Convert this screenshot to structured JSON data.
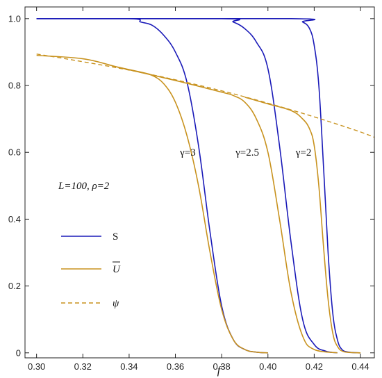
{
  "chart_data": {
    "type": "line",
    "xlabel": "f",
    "xlim": [
      0.295,
      0.446
    ],
    "ylim": [
      -0.015,
      1.035
    ],
    "x_ticks": [
      "0.30",
      "0.32",
      "0.34",
      "0.36",
      "0.38",
      "0.40",
      "0.42",
      "0.44"
    ],
    "x_tick_values": [
      0.3,
      0.32,
      0.34,
      0.36,
      0.38,
      0.4,
      0.42,
      0.44
    ],
    "y_ticks": [
      "0",
      "0.2",
      "0.4",
      "0.6",
      "0.8",
      "1.0"
    ],
    "y_tick_values": [
      0,
      0.2,
      0.4,
      0.6,
      0.8,
      1.0
    ],
    "grid": false,
    "colors": {
      "S": "#1a1ab8",
      "U": "#c8921e",
      "psi": "#c8921e",
      "axis": "#222222"
    },
    "annotation": "L=100, ρ=2",
    "legend": {
      "placement": "left",
      "items": [
        {
          "label": "S",
          "style": "solid",
          "color": "#1a1ab8"
        },
        {
          "label": "U",
          "overline": true,
          "style": "solid",
          "color": "#c8921e"
        },
        {
          "label": "ψ",
          "style": "dashed",
          "color": "#c8921e"
        }
      ]
    },
    "gamma_labels": [
      {
        "text": "γ=3",
        "x": 0.362,
        "y": 0.6
      },
      {
        "text": "γ=2.5",
        "x": 0.386,
        "y": 0.6
      },
      {
        "text": "γ=2",
        "x": 0.412,
        "y": 0.6
      }
    ],
    "series": [
      {
        "name": "S",
        "gamma": "3",
        "kind": "S",
        "x": [
          0.3,
          0.34,
          0.345,
          0.35,
          0.355,
          0.36,
          0.365,
          0.37,
          0.375,
          0.38,
          0.385,
          0.39,
          0.395,
          0.4
        ],
        "y": [
          1.0,
          1.0,
          0.99,
          0.98,
          0.95,
          0.9,
          0.81,
          0.62,
          0.36,
          0.14,
          0.04,
          0.01,
          0.002,
          0.0
        ]
      },
      {
        "name": "S",
        "gamma": "2.5",
        "kind": "S",
        "x": [
          0.3,
          0.38,
          0.385,
          0.39,
          0.395,
          0.4,
          0.405,
          0.41,
          0.415,
          0.42,
          0.425,
          0.43
        ],
        "y": [
          1.0,
          1.0,
          0.99,
          0.97,
          0.93,
          0.85,
          0.62,
          0.33,
          0.1,
          0.025,
          0.005,
          0.0
        ]
      },
      {
        "name": "S",
        "gamma": "2",
        "kind": "S",
        "x": [
          0.3,
          0.41,
          0.415,
          0.418,
          0.42,
          0.422,
          0.424,
          0.426,
          0.428,
          0.43,
          0.432,
          0.435,
          0.44
        ],
        "y": [
          1.0,
          1.0,
          0.99,
          0.97,
          0.92,
          0.8,
          0.56,
          0.3,
          0.12,
          0.04,
          0.01,
          0.002,
          0.0
        ]
      },
      {
        "name": "U",
        "gamma": "3",
        "kind": "U",
        "x": [
          0.3,
          0.32,
          0.335,
          0.345,
          0.35,
          0.355,
          0.36,
          0.365,
          0.37,
          0.375,
          0.38,
          0.385,
          0.39,
          0.395,
          0.4
        ],
        "y": [
          0.89,
          0.88,
          0.855,
          0.84,
          0.83,
          0.805,
          0.75,
          0.65,
          0.5,
          0.3,
          0.13,
          0.04,
          0.01,
          0.002,
          0.0
        ]
      },
      {
        "name": "U",
        "gamma": "2.5",
        "kind": "U",
        "x": [
          0.335,
          0.36,
          0.38,
          0.385,
          0.39,
          0.395,
          0.4,
          0.405,
          0.41,
          0.415,
          0.42,
          0.43
        ],
        "y": [
          0.855,
          0.815,
          0.78,
          0.77,
          0.75,
          0.7,
          0.6,
          0.4,
          0.18,
          0.05,
          0.01,
          0.0
        ]
      },
      {
        "name": "U",
        "gamma": "2",
        "kind": "U",
        "x": [
          0.39,
          0.4,
          0.41,
          0.415,
          0.418,
          0.42,
          0.422,
          0.424,
          0.426,
          0.428,
          0.43,
          0.433,
          0.44
        ],
        "y": [
          0.765,
          0.745,
          0.725,
          0.7,
          0.67,
          0.62,
          0.5,
          0.32,
          0.16,
          0.06,
          0.02,
          0.003,
          0.0
        ]
      },
      {
        "name": "ψ",
        "kind": "psi",
        "x": [
          0.3,
          0.31,
          0.32,
          0.33,
          0.34,
          0.35,
          0.36,
          0.37,
          0.38,
          0.39,
          0.4,
          0.41,
          0.42,
          0.43,
          0.44,
          0.446
        ],
        "y": [
          0.894,
          0.883,
          0.871,
          0.859,
          0.846,
          0.832,
          0.817,
          0.801,
          0.784,
          0.766,
          0.747,
          0.727,
          0.706,
          0.684,
          0.661,
          0.645
        ]
      }
    ]
  }
}
